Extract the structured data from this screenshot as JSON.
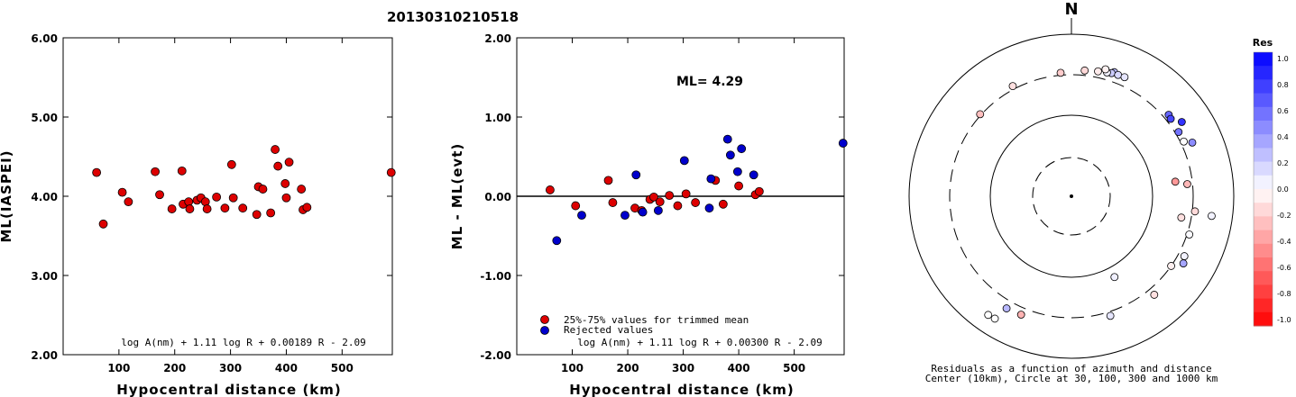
{
  "figure_title": "20130310210518",
  "chart_data": [
    {
      "type": "scatter",
      "panel": "left",
      "xlabel": "Hypocentral distance (km)",
      "ylabel": "ML(IASPEI)",
      "xlim": [
        0,
        590
      ],
      "ylim": [
        2.0,
        6.0
      ],
      "xticks": [
        "100",
        "200",
        "300",
        "400",
        "500"
      ],
      "xtick_values": [
        100,
        200,
        300,
        400,
        500
      ],
      "yticks": [
        "2.00",
        "3.00",
        "4.00",
        "5.00",
        "6.00"
      ],
      "ytick_values": [
        2.0,
        3.0,
        4.0,
        5.0,
        6.0
      ],
      "formula": "log A(nm) + 1.11 log R + 0.00189 R - 2.09",
      "point_color": "#dd0000",
      "points": [
        [
          60,
          4.3
        ],
        [
          72,
          3.65
        ],
        [
          106,
          4.05
        ],
        [
          117,
          3.93
        ],
        [
          165,
          4.31
        ],
        [
          173,
          4.02
        ],
        [
          195,
          3.84
        ],
        [
          213,
          4.32
        ],
        [
          215,
          3.9
        ],
        [
          225,
          3.93
        ],
        [
          227,
          3.84
        ],
        [
          240,
          3.95
        ],
        [
          247,
          3.98
        ],
        [
          255,
          3.93
        ],
        [
          258,
          3.84
        ],
        [
          275,
          3.99
        ],
        [
          290,
          3.85
        ],
        [
          302,
          4.4
        ],
        [
          305,
          3.98
        ],
        [
          322,
          3.85
        ],
        [
          347,
          3.77
        ],
        [
          350,
          4.12
        ],
        [
          358,
          4.09
        ],
        [
          372,
          3.79
        ],
        [
          380,
          4.59
        ],
        [
          385,
          4.38
        ],
        [
          398,
          4.16
        ],
        [
          400,
          3.98
        ],
        [
          405,
          4.43
        ],
        [
          427,
          4.09
        ],
        [
          430,
          3.83
        ],
        [
          437,
          3.86
        ],
        [
          588,
          4.3
        ]
      ]
    },
    {
      "type": "scatter",
      "panel": "middle",
      "xlabel": "Hypocentral distance (km)",
      "ylabel": "ML - ML(evt)",
      "xlim": [
        0,
        590
      ],
      "ylim": [
        -2.0,
        2.0
      ],
      "xticks": [
        "100",
        "200",
        "300",
        "400",
        "500"
      ],
      "xtick_values": [
        100,
        200,
        300,
        400,
        500
      ],
      "yticks": [
        "-2.00",
        "-1.00",
        "0.00",
        "1.00",
        "2.00"
      ],
      "ytick_values": [
        -2.0,
        -1.0,
        0.0,
        1.0,
        2.0
      ],
      "ml_text": "ML= 4.29",
      "formula": "log A(nm) + 1.11 log R + 0.00300 R - 2.09",
      "legend": [
        {
          "label": "25%-75% values for trimmed mean",
          "color": "#dd0000"
        },
        {
          "label": "Rejected values",
          "color": "#0000cc"
        }
      ],
      "series": [
        {
          "color": "#dd0000",
          "points": [
            [
              60,
              0.08
            ],
            [
              106,
              -0.12
            ],
            [
              165,
              0.2
            ],
            [
              173,
              -0.08
            ],
            [
              213,
              -0.15
            ],
            [
              225,
              -0.18
            ],
            [
              240,
              -0.04
            ],
            [
              247,
              -0.01
            ],
            [
              258,
              -0.07
            ],
            [
              275,
              0.01
            ],
            [
              290,
              -0.12
            ],
            [
              305,
              0.03
            ],
            [
              322,
              -0.08
            ],
            [
              358,
              0.2
            ],
            [
              372,
              -0.1
            ],
            [
              400,
              0.13
            ],
            [
              430,
              0.02
            ],
            [
              437,
              0.06
            ]
          ]
        },
        {
          "color": "#0000cc",
          "points": [
            [
              72,
              -0.56
            ],
            [
              117,
              -0.24
            ],
            [
              195,
              -0.24
            ],
            [
              215,
              0.27
            ],
            [
              227,
              -0.2
            ],
            [
              255,
              -0.18
            ],
            [
              302,
              0.45
            ],
            [
              347,
              -0.15
            ],
            [
              350,
              0.22
            ],
            [
              380,
              0.72
            ],
            [
              385,
              0.52
            ],
            [
              398,
              0.31
            ],
            [
              405,
              0.6
            ],
            [
              427,
              0.27
            ],
            [
              588,
              0.67
            ]
          ]
        }
      ]
    },
    {
      "type": "scatter",
      "panel": "polar",
      "north_label": "N",
      "caption_line1": "Residuals as a function of azimuth and distance",
      "caption_line2": "Center (10km), Circle at 30, 100, 300 and 1000 km",
      "colorbar_title": "Res",
      "colorbar_ticks": [
        "1.0",
        "0.8",
        "0.6",
        "0.4",
        "0.2",
        "0.0",
        "-0.2",
        "-0.4",
        "-0.6",
        "-0.8",
        "-1.0"
      ],
      "points": [
        {
          "az": 19,
          "dist": 400,
          "res": 0.27
        },
        {
          "az": 18,
          "dist": 380,
          "res": 0.2
        },
        {
          "az": 21,
          "dist": 385,
          "res": 0.15
        },
        {
          "az": 24,
          "dist": 390,
          "res": 0.1
        },
        {
          "az": 16,
          "dist": 372,
          "res": 0.05
        },
        {
          "az": 15,
          "dist": 402,
          "res": -0.05
        },
        {
          "az": 12,
          "dist": 360,
          "res": -0.08
        },
        {
          "az": 6,
          "dist": 347,
          "res": -0.15
        },
        {
          "az": -5,
          "dist": 322,
          "res": -0.2
        },
        {
          "az": -28,
          "dist": 330,
          "res": -0.12
        },
        {
          "az": -48,
          "dist": 310,
          "res": -0.25
        },
        {
          "az": 50,
          "dist": 350,
          "res": 0.6
        },
        {
          "az": 52,
          "dist": 340,
          "res": 0.72
        },
        {
          "az": 56,
          "dist": 420,
          "res": 0.8
        },
        {
          "az": 59,
          "dist": 330,
          "res": 0.55
        },
        {
          "az": 64,
          "dist": 330,
          "res": 0.0
        },
        {
          "az": 66,
          "dist": 410,
          "res": 0.45
        },
        {
          "az": 82,
          "dist": 190,
          "res": -0.4
        },
        {
          "az": 84,
          "dist": 260,
          "res": -0.28
        },
        {
          "az": 97,
          "dist": 325,
          "res": -0.15
        },
        {
          "az": 98,
          "dist": 540,
          "res": 0.05
        },
        {
          "az": 101,
          "dist": 230,
          "res": -0.12
        },
        {
          "az": 108,
          "dist": 320,
          "res": 0.02
        },
        {
          "az": 118,
          "dist": 360,
          "res": 0.05
        },
        {
          "az": 121,
          "dist": 390,
          "res": 0.35
        },
        {
          "az": 125,
          "dist": 300,
          "res": -0.06
        },
        {
          "az": 140,
          "dist": 370,
          "res": -0.12
        },
        {
          "az": 152,
          "dist": 133,
          "res": 0.06
        },
        {
          "az": 162,
          "dist": 340,
          "res": 0.1
        },
        {
          "az": 203,
          "dist": 370,
          "res": -0.3
        },
        {
          "az": 210,
          "dist": 380,
          "res": 0.28
        },
        {
          "az": 212,
          "dist": 590,
          "res": 0.0
        },
        {
          "az": 215,
          "dist": 600,
          "res": 0.0
        }
      ]
    }
  ]
}
